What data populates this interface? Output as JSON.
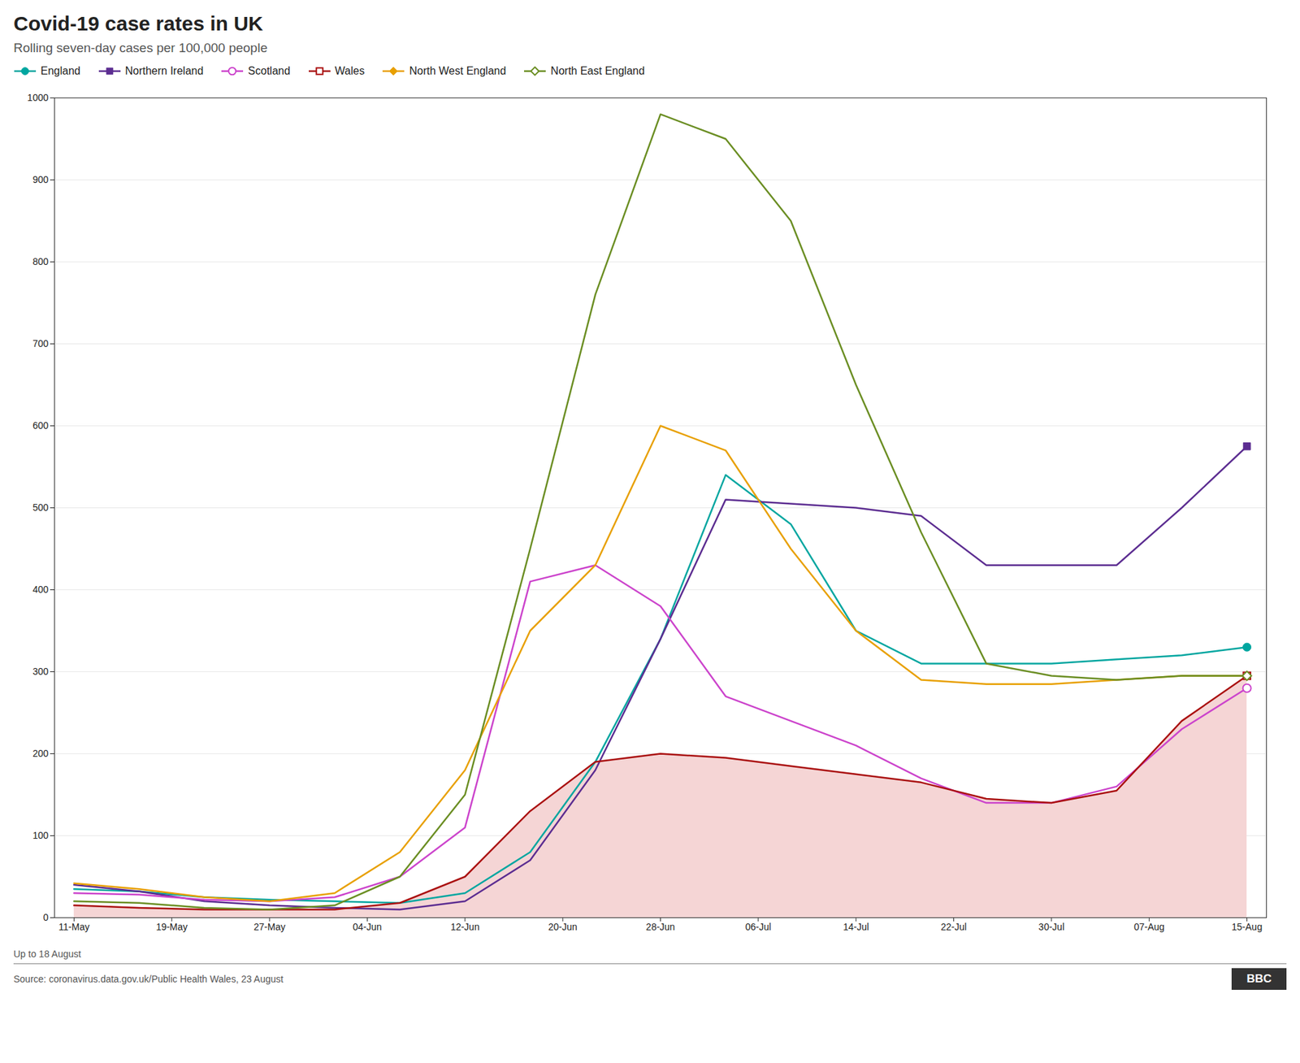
{
  "chart_data": {
    "type": "line",
    "title": "Covid-19 case rates in UK",
    "subtitle": "Rolling seven-day cases per 100,000 people",
    "caption": [
      "Up to 18 August",
      "Source: coronavirus.data.gov.uk/Public Health Wales, 23 August"
    ],
    "logo": "BBC",
    "xlim": [
      -0.3,
      18.3
    ],
    "xticks": [
      {
        "value": 0,
        "label": "11-May"
      },
      {
        "value": 1.5,
        "label": "19-May"
      },
      {
        "value": 3,
        "label": "27-May"
      },
      {
        "value": 4.5,
        "label": "04-Jun"
      },
      {
        "value": 6,
        "label": "12-Jun"
      },
      {
        "value": 7.5,
        "label": "20-Jun"
      },
      {
        "value": 9,
        "label": "28-Jun"
      },
      {
        "value": 10.5,
        "label": "06-Jul"
      },
      {
        "value": 12,
        "label": "14-Jul"
      },
      {
        "value": 13.5,
        "label": "22-Jul"
      },
      {
        "value": 15,
        "label": "30-Jul"
      },
      {
        "value": 16.5,
        "label": "07-Aug"
      },
      {
        "value": 18,
        "label": "15-Aug"
      }
    ],
    "ylim": [
      0,
      1000
    ],
    "yticks": [
      0,
      100,
      200,
      300,
      400,
      500,
      600,
      700,
      800,
      900,
      1000
    ],
    "grid": true,
    "legend": "top",
    "series": [
      {
        "name": "England",
        "color": "#00a6a0",
        "marker": "circle",
        "values": [
          35,
          32,
          25,
          22,
          20,
          18,
          30,
          80,
          190,
          340,
          540,
          480,
          350,
          310,
          310,
          310,
          315,
          320,
          330
        ]
      },
      {
        "name": "Northern Ireland",
        "color": "#5c2d91",
        "marker": "square",
        "values": [
          40,
          32,
          20,
          15,
          12,
          10,
          20,
          70,
          180,
          340,
          510,
          505,
          500,
          490,
          430,
          430,
          430,
          500,
          575
        ]
      },
      {
        "name": "Scotland",
        "color": "#cc44cc",
        "marker": "circle_open",
        "values": [
          30,
          28,
          22,
          20,
          25,
          50,
          110,
          410,
          430,
          380,
          270,
          240,
          210,
          170,
          140,
          140,
          160,
          230,
          280
        ]
      },
      {
        "name": "Wales",
        "type": "area",
        "color": "#aa1111",
        "colors": [
          "#aa1111",
          "#f5d5d5"
        ],
        "marker": "square_open",
        "values": [
          15,
          12,
          10,
          10,
          10,
          18,
          50,
          130,
          190,
          200,
          195,
          185,
          175,
          165,
          145,
          140,
          155,
          240,
          295
        ]
      },
      {
        "name": "North West England",
        "color": "#e8a000",
        "marker": "diamond",
        "values": [
          42,
          35,
          25,
          20,
          30,
          80,
          180,
          350,
          430,
          600,
          570,
          450,
          350,
          290,
          285,
          285,
          290,
          295,
          295
        ]
      },
      {
        "name": "North East England",
        "color": "#6b8e23",
        "marker": "diamond_open",
        "values": [
          20,
          18,
          12,
          10,
          15,
          50,
          150,
          450,
          760,
          980,
          950,
          850,
          650,
          470,
          310,
          295,
          290,
          295,
          295
        ]
      }
    ]
  }
}
